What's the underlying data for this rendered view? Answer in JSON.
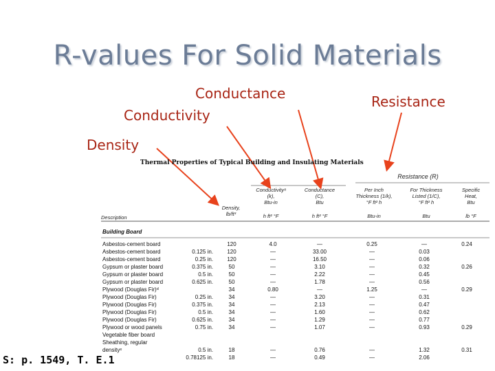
{
  "slide": {
    "title": "R-values For Solid Materials",
    "labels": {
      "conductance": "Conductance",
      "conductivity": "Conductivity",
      "resistance": "Resistance",
      "density": "Density"
    },
    "source": "S: p. 1549, T. E.1",
    "callout_color": "#a82414",
    "arrow_color": "#e8421c"
  },
  "table": {
    "caption": "Thermal Properties of Typical Building and Insulating Materials",
    "resistance_group": "Resistance (R)",
    "headers": {
      "description": "Description",
      "density": "Density,\nlb/ft³",
      "conductivity": "Conductivityᵃ\n(k),\nBtu-in",
      "conductivity_unit": "h ft² °F",
      "conductance": "Conductance\n(C),\nBtu",
      "conductance_unit": "h ft² °F",
      "per_inch": "Per Inch\nThickness (1/k),\n°F ft² h",
      "per_inch_unit": "Btu-in",
      "listed": "For Thickness\nListed (1/C),\n°F ft² h",
      "listed_unit": "Btu",
      "specific_heat": "Specific\nHeat,\nBtu",
      "specific_heat_unit": "lb °F"
    },
    "section": "Building Board",
    "rows": [
      {
        "desc": "Asbestos-cement board",
        "thk": "",
        "density": "120",
        "k": "4.0",
        "c": "—",
        "r_in": "0.25",
        "r_t": "—",
        "cp": "0.24"
      },
      {
        "desc": "Asbestos-cement board",
        "thk": "0.125 in.",
        "density": "120",
        "k": "—",
        "c": "33.00",
        "r_in": "—",
        "r_t": "0.03",
        "cp": ""
      },
      {
        "desc": "Asbestos-cement board",
        "thk": "0.25 in.",
        "density": "120",
        "k": "—",
        "c": "16.50",
        "r_in": "—",
        "r_t": "0.06",
        "cp": ""
      },
      {
        "desc": "Gypsum or plaster board",
        "thk": "0.375 in.",
        "density": "50",
        "k": "—",
        "c": "3.10",
        "r_in": "—",
        "r_t": "0.32",
        "cp": "0.26"
      },
      {
        "desc": "Gypsum or plaster board",
        "thk": "0.5 in.",
        "density": "50",
        "k": "—",
        "c": "2.22",
        "r_in": "—",
        "r_t": "0.45",
        "cp": ""
      },
      {
        "desc": "Gypsum or plaster board",
        "thk": "0.625 in.",
        "density": "50",
        "k": "—",
        "c": "1.78",
        "r_in": "—",
        "r_t": "0.56",
        "cp": ""
      },
      {
        "desc": "Plywood (Douglas Fir)ᵈ",
        "thk": "",
        "density": "34",
        "k": "0.80",
        "c": "—",
        "r_in": "1.25",
        "r_t": "—",
        "cp": "0.29"
      },
      {
        "desc": "Plywood (Douglas Fir)",
        "thk": "0.25 in.",
        "density": "34",
        "k": "—",
        "c": "3.20",
        "r_in": "—",
        "r_t": "0.31",
        "cp": ""
      },
      {
        "desc": "Plywood (Douglas Fir)",
        "thk": "0.375 in.",
        "density": "34",
        "k": "—",
        "c": "2.13",
        "r_in": "—",
        "r_t": "0.47",
        "cp": ""
      },
      {
        "desc": "Plywood (Douglas Fir)",
        "thk": "0.5 in.",
        "density": "34",
        "k": "—",
        "c": "1.60",
        "r_in": "—",
        "r_t": "0.62",
        "cp": ""
      },
      {
        "desc": "Plywood (Douglas Fir)",
        "thk": "0.625 in.",
        "density": "34",
        "k": "—",
        "c": "1.29",
        "r_in": "—",
        "r_t": "0.77",
        "cp": ""
      },
      {
        "desc": "Plywood or wood panels",
        "thk": "0.75 in.",
        "density": "34",
        "k": "—",
        "c": "1.07",
        "r_in": "—",
        "r_t": "0.93",
        "cp": "0.29"
      },
      {
        "desc": "Vegetable fiber board",
        "thk": "",
        "density": "",
        "k": "",
        "c": "",
        "r_in": "",
        "r_t": "",
        "cp": ""
      },
      {
        "desc": "  Sheathing, regular",
        "thk": "",
        "density": "",
        "k": "",
        "c": "",
        "r_in": "",
        "r_t": "",
        "cp": ""
      },
      {
        "desc": "  densityᵉ",
        "thk": "0.5 in.",
        "density": "18",
        "k": "—",
        "c": "0.76",
        "r_in": "—",
        "r_t": "1.32",
        "cp": "0.31"
      },
      {
        "desc": "",
        "thk": "0.78125 in.",
        "density": "18",
        "k": "—",
        "c": "0.49",
        "r_in": "—",
        "r_t": "2.06",
        "cp": ""
      }
    ]
  }
}
